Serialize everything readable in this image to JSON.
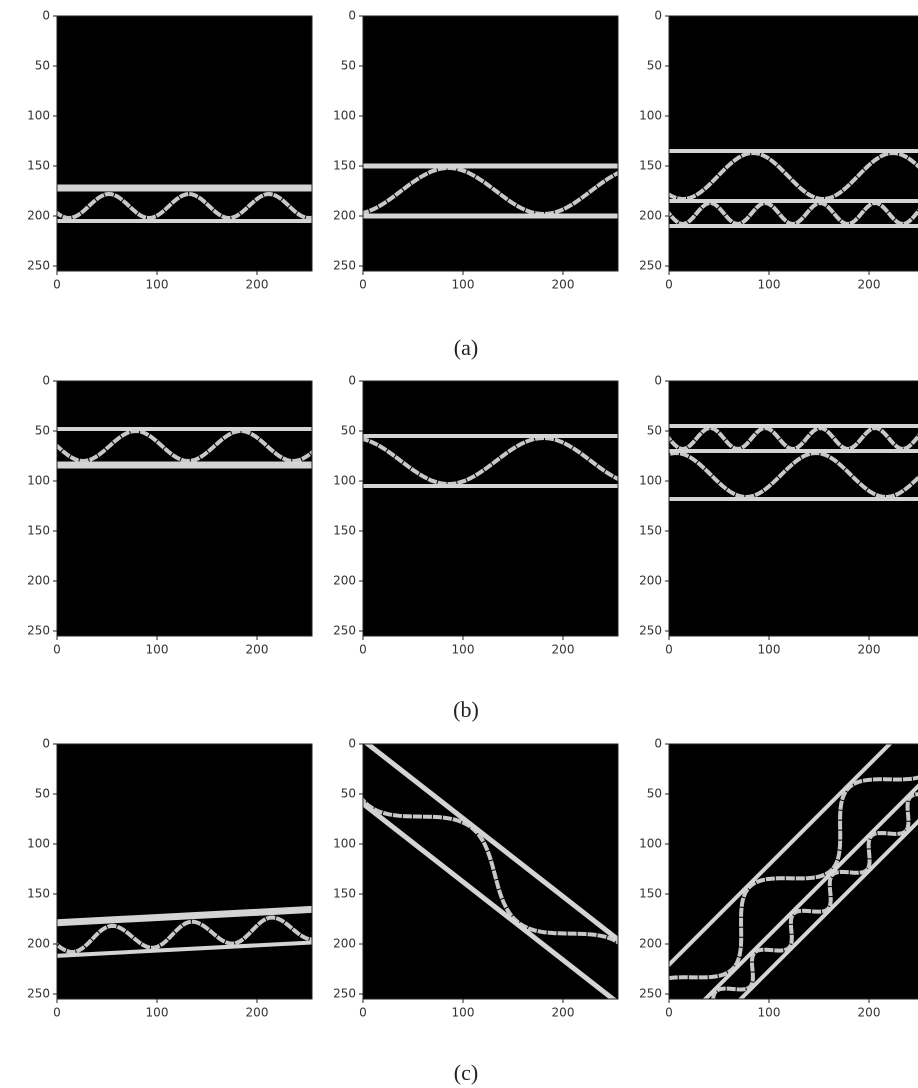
{
  "chart_data": [
    {
      "type": "image",
      "xlim": [
        0,
        255
      ],
      "ylim": [
        255,
        0
      ],
      "xticks": [
        0,
        100,
        200
      ],
      "yticks": [
        0,
        50,
        100,
        150,
        200,
        250
      ]
    },
    {
      "type": "image",
      "xlim": [
        0,
        255
      ],
      "ylim": [
        255,
        0
      ],
      "xticks": [
        0,
        100,
        200
      ],
      "yticks": [
        0,
        50,
        100,
        150,
        200,
        250
      ]
    },
    {
      "type": "image",
      "xlim": [
        0,
        255
      ],
      "ylim": [
        255,
        0
      ],
      "xticks": [
        0,
        100,
        200
      ],
      "yticks": [
        0,
        50,
        100,
        150,
        200,
        250
      ]
    },
    {
      "type": "image",
      "xlim": [
        0,
        255
      ],
      "ylim": [
        255,
        0
      ],
      "xticks": [
        0,
        100,
        200
      ],
      "yticks": [
        0,
        50,
        100,
        150,
        200,
        250
      ]
    },
    {
      "type": "image",
      "xlim": [
        0,
        255
      ],
      "ylim": [
        255,
        0
      ],
      "xticks": [
        0,
        100,
        200
      ],
      "yticks": [
        0,
        50,
        100,
        150,
        200,
        250
      ]
    },
    {
      "type": "image",
      "xlim": [
        0,
        255
      ],
      "ylim": [
        255,
        0
      ],
      "xticks": [
        0,
        100,
        200
      ],
      "yticks": [
        0,
        50,
        100,
        150,
        200,
        250
      ]
    },
    {
      "type": "image",
      "xlim": [
        0,
        255
      ],
      "ylim": [
        255,
        0
      ],
      "xticks": [
        0,
        100,
        200
      ],
      "yticks": [
        0,
        50,
        100,
        150,
        200,
        250
      ]
    },
    {
      "type": "image",
      "xlim": [
        0,
        255
      ],
      "ylim": [
        255,
        0
      ],
      "xticks": [
        0,
        100,
        200
      ],
      "yticks": [
        0,
        50,
        100,
        150,
        200,
        250
      ]
    },
    {
      "type": "image",
      "xlim": [
        0,
        255
      ],
      "ylim": [
        255,
        0
      ],
      "xticks": [
        0,
        100,
        200
      ],
      "yticks": [
        0,
        50,
        100,
        150,
        200,
        250
      ]
    }
  ],
  "captions": [
    "(a)",
    "(b)",
    "(c)"
  ]
}
